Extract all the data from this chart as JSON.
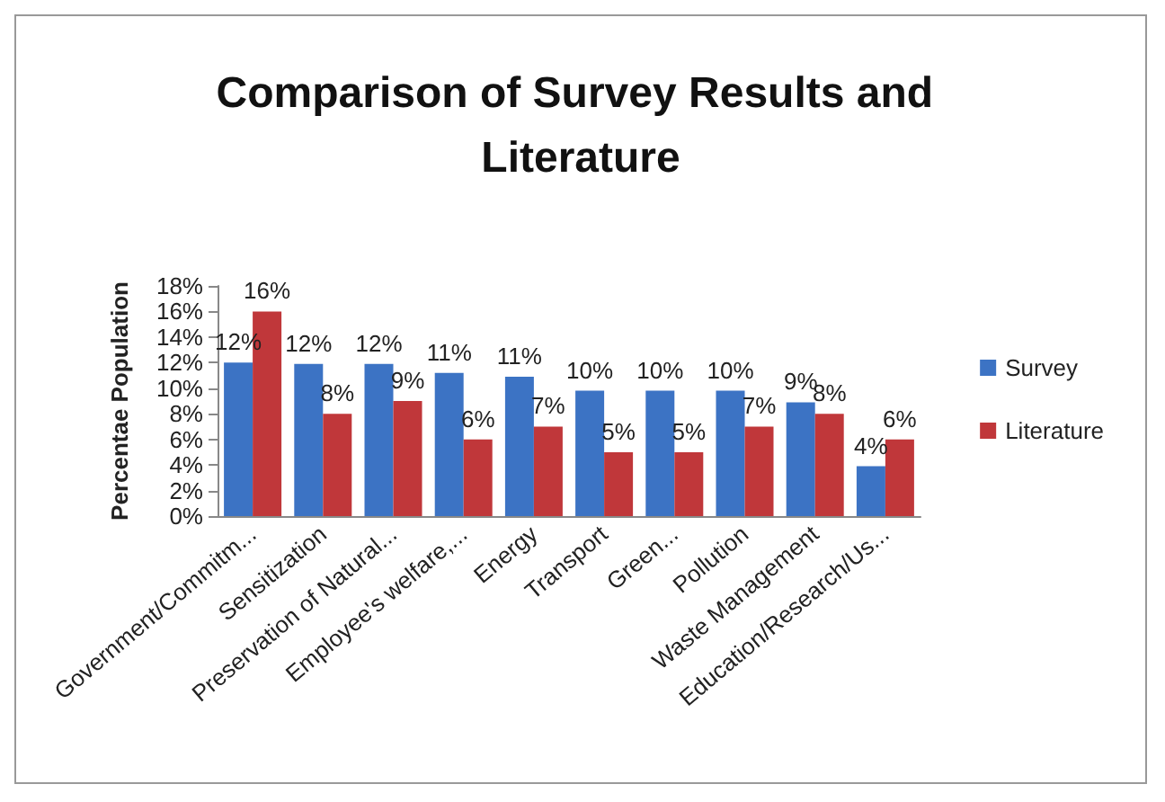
{
  "chart_data": {
    "type": "bar",
    "title": "Comparison of Survey Results and Literature",
    "ylabel": "Percentae Population",
    "categories": [
      "Government/Commitm...",
      "Sensitization",
      "Preservation of Natural...",
      "Employee's welfare,...",
      "Energy",
      "Transport",
      "Green...",
      "Pollution",
      "Waste Management",
      "Education/Research/Us..."
    ],
    "series": [
      {
        "name": "Survey",
        "color": "#3c73c4",
        "values": [
          12.0,
          11.9,
          11.9,
          11.2,
          10.9,
          9.8,
          9.8,
          9.8,
          8.9,
          3.9
        ],
        "value_labels": [
          "12%",
          "12%",
          "12%",
          "11%",
          "11%",
          "10%",
          "10%",
          "10%",
          "9%",
          "4%"
        ]
      },
      {
        "name": "Literature",
        "color": "#c0373a",
        "values": [
          16,
          8,
          9,
          6,
          7,
          5,
          5,
          7,
          8,
          6
        ],
        "value_labels": [
          "16%",
          "8%",
          "9%",
          "6%",
          "7%",
          "5%",
          "5%",
          "7%",
          "8%",
          "6%"
        ]
      }
    ],
    "ylim": [
      0,
      18
    ],
    "yticks": [
      {
        "value": 0,
        "label": "0%"
      },
      {
        "value": 2,
        "label": "2%"
      },
      {
        "value": 4,
        "label": "4%"
      },
      {
        "value": 6,
        "label": "6%"
      },
      {
        "value": 8,
        "label": "8%"
      },
      {
        "value": 10,
        "label": "10%"
      },
      {
        "value": 12,
        "label": "12%"
      },
      {
        "value": 14,
        "label": "14%"
      },
      {
        "value": 16,
        "label": "16%"
      },
      {
        "value": 18,
        "label": "18%"
      }
    ],
    "grid": false,
    "legend": "right"
  }
}
